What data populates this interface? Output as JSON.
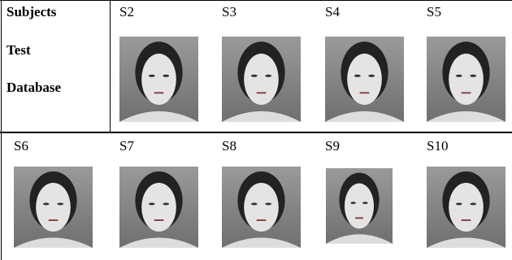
{
  "table": {
    "header_label": "Subjects",
    "row_label": [
      "Test",
      "Database"
    ],
    "subjects_top": [
      "S2",
      "S3",
      "S4",
      "S5"
    ],
    "subjects_bottom": [
      "S6",
      "S7",
      "S8",
      "S9",
      "S10"
    ]
  }
}
